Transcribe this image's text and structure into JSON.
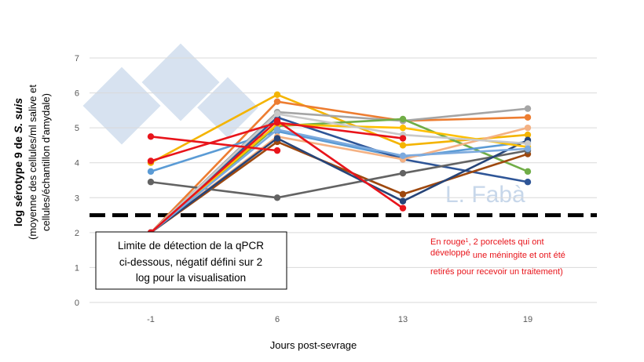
{
  "chart_data": {
    "type": "line",
    "xlabel": "Jours post-sevrage",
    "ylabel_line1_prefix": "log sérotype 9 de ",
    "ylabel_line1_italic": "S. suis",
    "ylabel_line2": "(moyenne des cellules/ml salive et",
    "ylabel_line3": "cellules/échantillon d'amydale)",
    "categories": [
      "-1",
      "6",
      "13",
      "19"
    ],
    "yticks": [
      "0",
      "1",
      "2",
      "3",
      "4",
      "5",
      "6",
      "7"
    ],
    "ylim": [
      0,
      7
    ],
    "detection_limit": 2.5,
    "series": [
      {
        "color": "#f4b400",
        "values": [
          4.0,
          5.95,
          4.5,
          4.8
        ]
      },
      {
        "color": "#ed7d31",
        "values": [
          2.0,
          5.75,
          5.2,
          5.3
        ]
      },
      {
        "color": "#a5a5a5",
        "values": [
          2.0,
          5.45,
          5.2,
          5.55
        ]
      },
      {
        "color": "#70ad47",
        "values": [
          2.0,
          5.05,
          5.25,
          3.75
        ]
      },
      {
        "color": "#5b9bd5",
        "values": [
          3.75,
          4.9,
          4.15,
          4.6
        ]
      },
      {
        "color": "#2e5597",
        "values": [
          2.0,
          5.3,
          4.1,
          3.45
        ]
      },
      {
        "color": "#9e480e",
        "values": [
          2.0,
          4.6,
          3.1,
          4.25
        ]
      },
      {
        "color": "#636363",
        "values": [
          3.45,
          3.0,
          3.7,
          4.35
        ]
      },
      {
        "color": "#f4b183",
        "values": [
          2.0,
          4.75,
          4.1,
          5.0
        ]
      },
      {
        "color": "#264478",
        "values": [
          2.0,
          4.7,
          2.9,
          4.65
        ]
      },
      {
        "color": "#ffc000",
        "values": [
          2.0,
          5.1,
          5.0,
          4.45
        ]
      },
      {
        "color": "#c9c9c9",
        "values": [
          2.0,
          5.4,
          4.8,
          4.55
        ]
      },
      {
        "color": "#7caade",
        "values": [
          2.0,
          4.95,
          4.2,
          4.4
        ]
      },
      {
        "color": "#e8141b",
        "values": [
          4.75,
          4.35,
          null,
          null
        ]
      },
      {
        "color": "#e8141b",
        "values": [
          4.05,
          5.15,
          4.7,
          null
        ]
      },
      {
        "color": "#e8141b",
        "values": [
          2.0,
          5.2,
          2.7,
          null
        ]
      }
    ],
    "watermark": "L. Fabà",
    "box_text": [
      "Limite de détection de la qPCR",
      "ci-dessous, négatif défini sur 2",
      "log pour la visualisation"
    ],
    "red_note": {
      "line1_main": "En rouge",
      "line1_sup": "1",
      "line1_rest": ", 2 porcelets qui ont",
      "line2_main": "développé",
      "line2_rest": " une méningite et ont été",
      "line3": "retirés pour recevoir un traitement)"
    }
  }
}
